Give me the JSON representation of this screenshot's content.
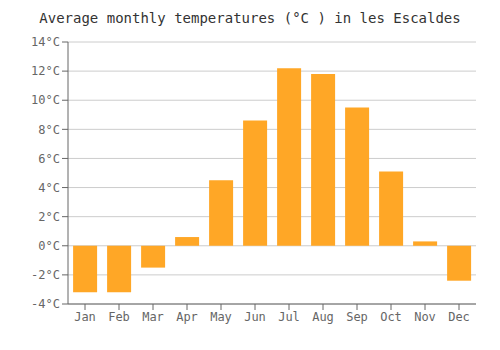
{
  "chart_data": {
    "type": "bar",
    "title": "Average monthly temperatures (°C ) in les Escaldes",
    "categories": [
      "Jan",
      "Feb",
      "Mar",
      "Apr",
      "May",
      "Jun",
      "Jul",
      "Aug",
      "Sep",
      "Oct",
      "Nov",
      "Dec"
    ],
    "values": [
      -3.2,
      -3.2,
      -1.5,
      0.6,
      4.5,
      8.6,
      12.2,
      11.8,
      9.5,
      5.1,
      0.3,
      -2.4
    ],
    "color": "#FFA726",
    "ylim": [
      -4,
      14
    ],
    "yticks": [
      {
        "value": -4,
        "label": "-4°C"
      },
      {
        "value": -2,
        "label": "-2°C"
      },
      {
        "value": 0,
        "label": "0°C"
      },
      {
        "value": 2,
        "label": "2°C"
      },
      {
        "value": 4,
        "label": "4°C"
      },
      {
        "value": 6,
        "label": "6°C"
      },
      {
        "value": 8,
        "label": "8°C"
      },
      {
        "value": 10,
        "label": "10°C"
      },
      {
        "value": 12,
        "label": "12°C"
      },
      {
        "value": 14,
        "label": "14°C"
      }
    ],
    "grid": true
  }
}
